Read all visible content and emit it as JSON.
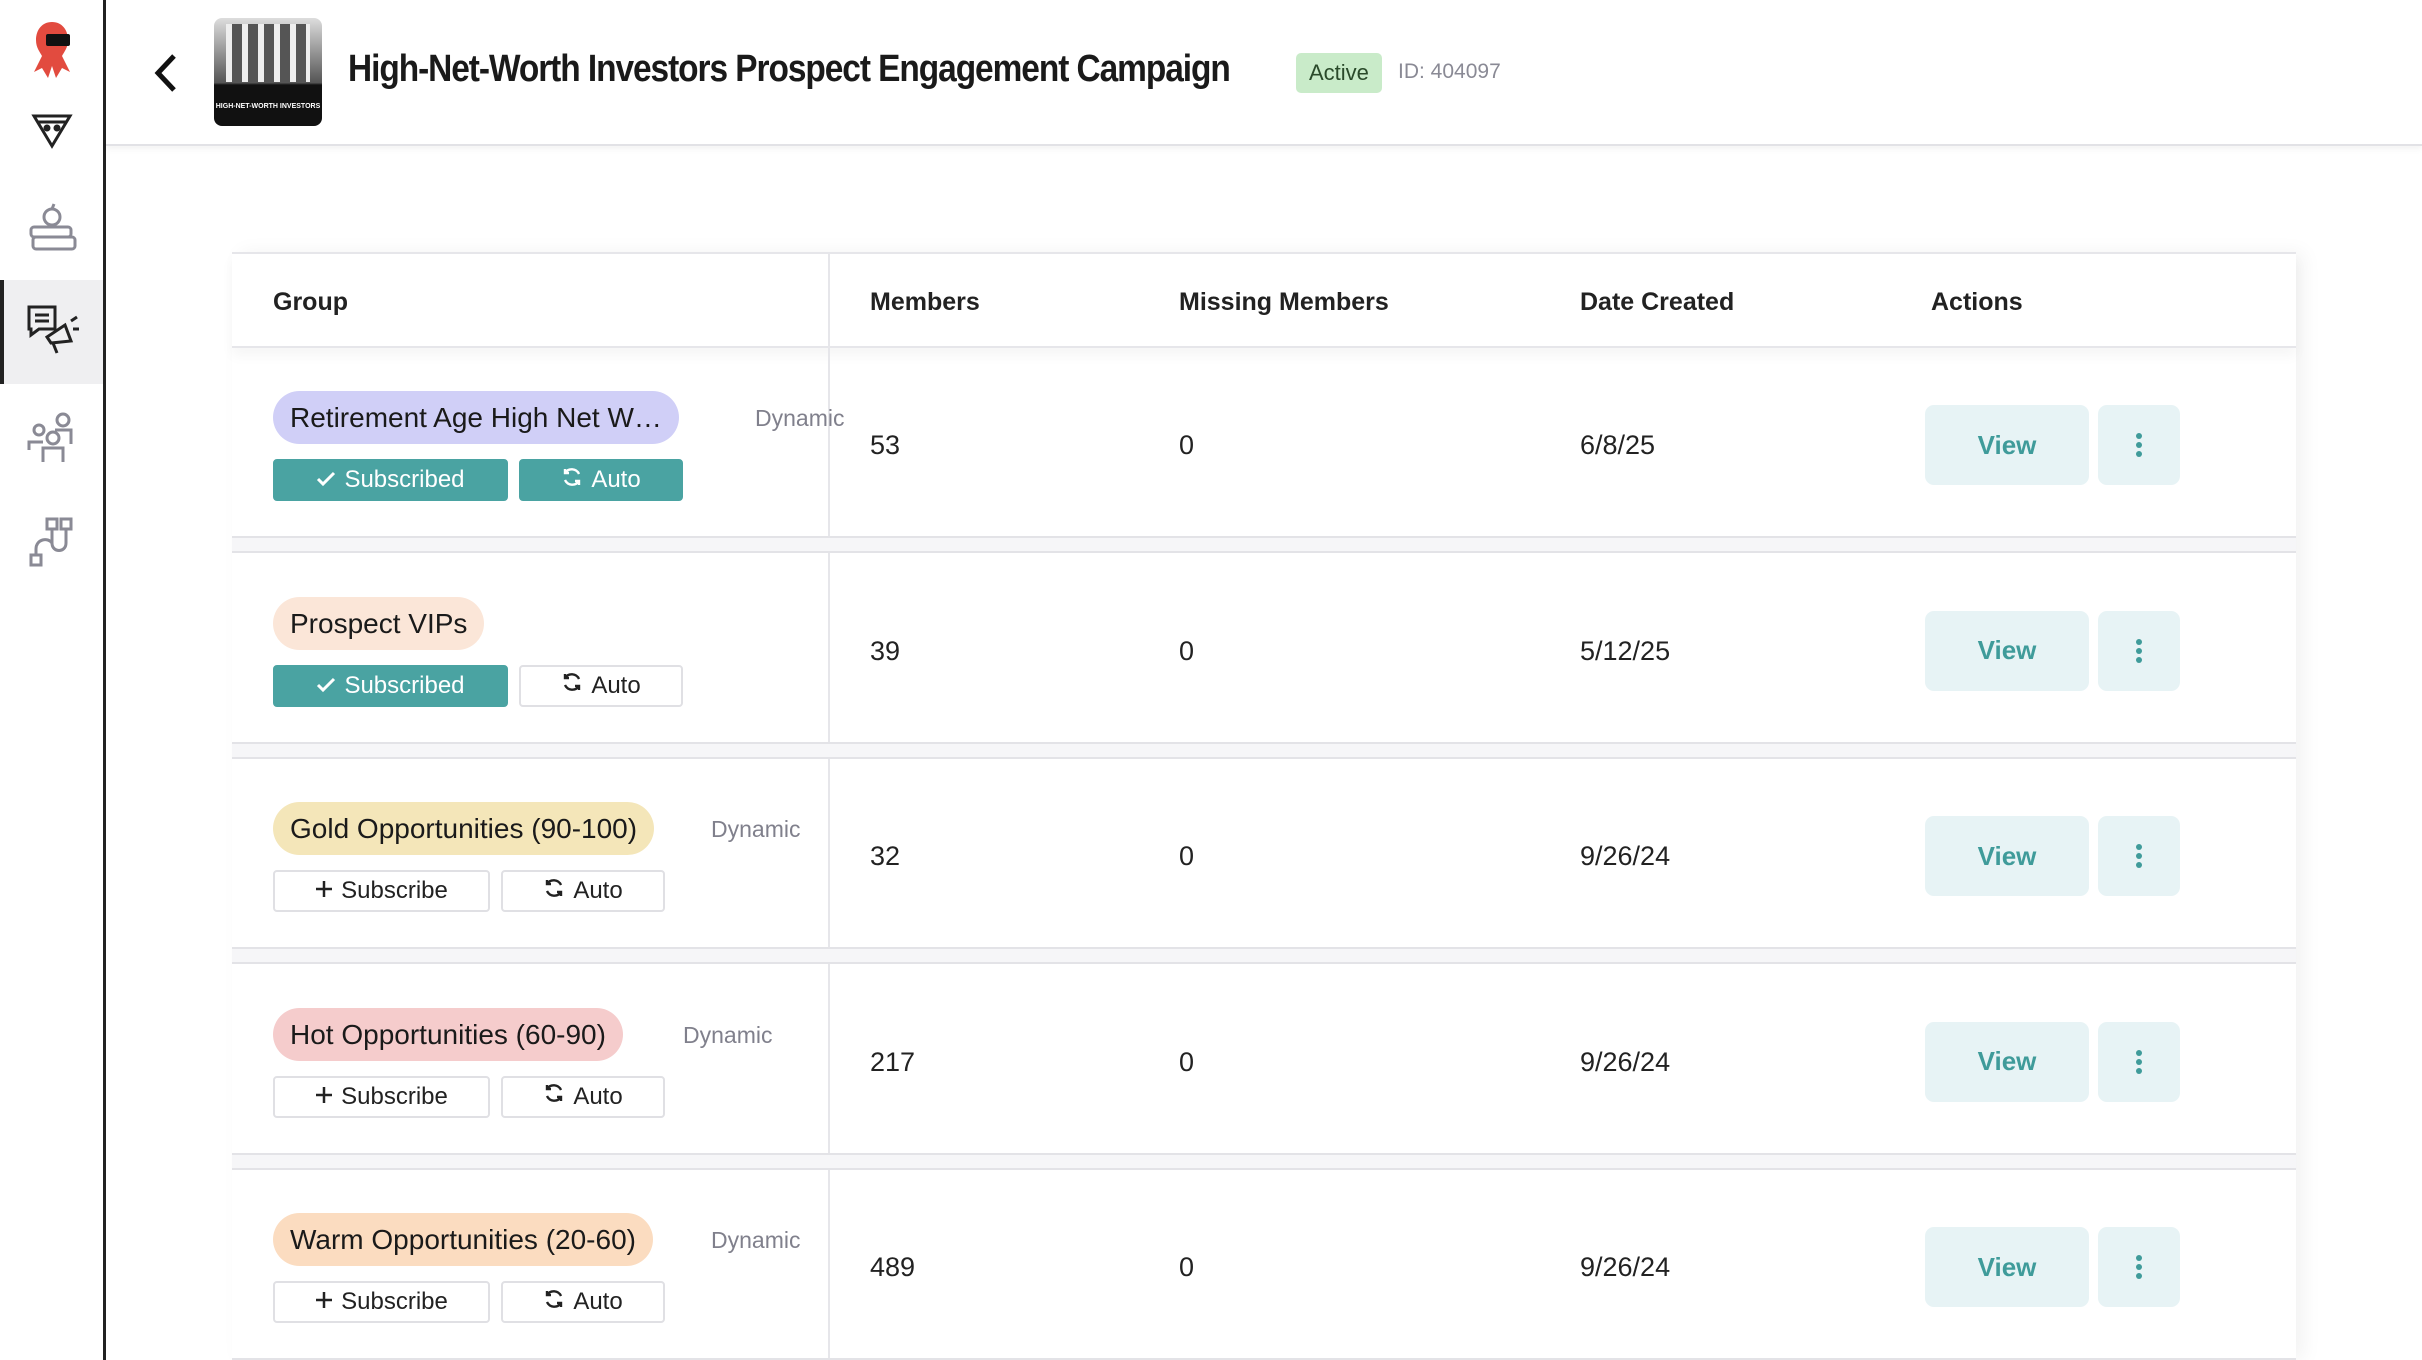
{
  "header": {
    "title": "High-Net-Worth Investors Prospect Engagement Campaign",
    "status": "Active",
    "id_label": "ID: 404097",
    "thumbnail_caption": "HIGH-NET-WORTH INVESTORS"
  },
  "sidebar": {
    "items": [
      {
        "icon": "logo-icon"
      },
      {
        "icon": "funnel-icon"
      },
      {
        "icon": "books-apple-icon"
      },
      {
        "icon": "megaphone-chat-icon",
        "active": true
      },
      {
        "icon": "people-icon"
      },
      {
        "icon": "integrations-icon"
      }
    ]
  },
  "table": {
    "columns": [
      "Group",
      "Members",
      "Missing Members",
      "Date Created",
      "Actions"
    ],
    "rows": [
      {
        "group": "Retirement Age High Net W…",
        "pill_color": "#d0cff7",
        "dynamic": "Dynamic",
        "subscribe": "Subscribed",
        "subscribed": true,
        "auto": "Auto",
        "auto_on": true,
        "members": "53",
        "missing": "0",
        "date": "6/8/25",
        "view": "View"
      },
      {
        "group": "Prospect VIPs",
        "pill_color": "#fbe6d8",
        "dynamic": "",
        "subscribe": "Subscribed",
        "subscribed": true,
        "auto": "Auto",
        "auto_on": false,
        "members": "39",
        "missing": "0",
        "date": "5/12/25",
        "view": "View"
      },
      {
        "group": "Gold Opportunities (90-100)",
        "pill_color": "#f4e6b9",
        "dynamic": "Dynamic",
        "subscribe": "Subscribe",
        "subscribed": false,
        "auto": "Auto",
        "auto_on": false,
        "members": "32",
        "missing": "0",
        "date": "9/26/24",
        "view": "View"
      },
      {
        "group": "Hot Opportunities (60-90)",
        "pill_color": "#f5cccc",
        "dynamic": "Dynamic",
        "subscribe": "Subscribe",
        "subscribed": false,
        "auto": "Auto",
        "auto_on": false,
        "members": "217",
        "missing": "0",
        "date": "9/26/24",
        "view": "View"
      },
      {
        "group": "Warm Opportunities (20-60)",
        "pill_color": "#fbdcc0",
        "dynamic": "Dynamic",
        "subscribe": "Subscribe",
        "subscribed": false,
        "auto": "Auto",
        "auto_on": false,
        "members": "489",
        "missing": "0",
        "date": "9/26/24",
        "view": "View"
      }
    ]
  },
  "colors": {
    "accent": "#4aa3a2",
    "view_bg": "#e7f3f5",
    "active_badge": "#c9ebc9"
  }
}
